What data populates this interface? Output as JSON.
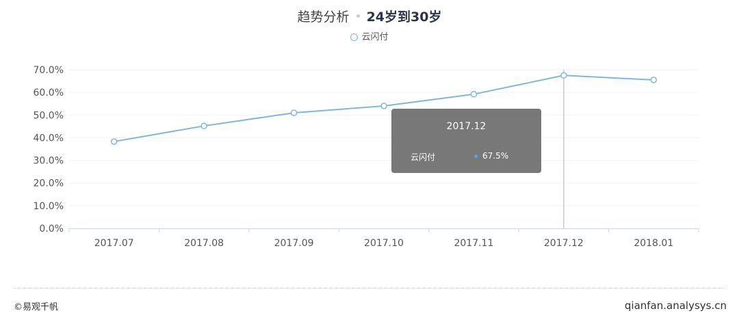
{
  "header": {
    "title": "趋势分析",
    "subtitle": "24岁到30岁"
  },
  "tooltip": {
    "title": "2017.12",
    "series_name": "云闪付",
    "value": "67.5%"
  },
  "footer": {
    "left": "©易观千帆",
    "right": "qianfan.analysys.cn"
  },
  "colors": {
    "line": "#7fb7dc",
    "axis": "#ccd6eb",
    "grid": "#f2f2f2",
    "tooltip_bg": "#5a5a5a",
    "tooltip_dot": "#5aa2e6"
  },
  "chart_data": {
    "type": "line",
    "title": "趋势分析",
    "subtitle": "24岁到30岁",
    "categories": [
      "2017.07",
      "2017.08",
      "2017.09",
      "2017.10",
      "2017.11",
      "2017.12",
      "2018.01"
    ],
    "series": [
      {
        "name": "云闪付",
        "values": [
          38.3,
          45.2,
          51.0,
          54.0,
          59.2,
          67.5,
          65.5
        ]
      }
    ],
    "y_ticks": [
      "0.0%",
      "10.0%",
      "20.0%",
      "30.0%",
      "40.0%",
      "50.0%",
      "60.0%",
      "70.0%"
    ],
    "ylim": [
      0,
      70
    ],
    "legend": "top-center",
    "highlighted_category": "2017.12",
    "grid": true
  }
}
